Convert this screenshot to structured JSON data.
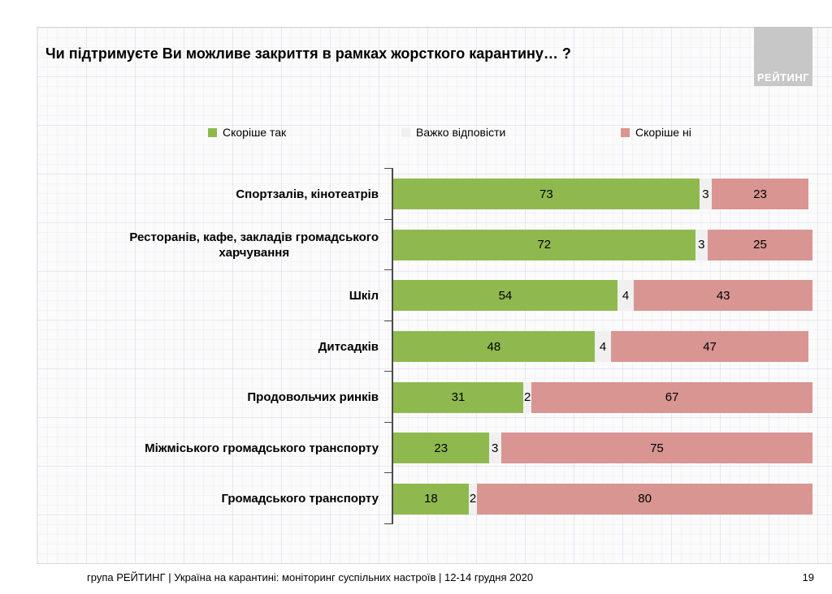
{
  "header": {
    "title": "Чи підтримуєте Ви можливе закриття в рамках жорсткого карантину… ?",
    "logo_text": "РЕЙТИНГ"
  },
  "legend": [
    {
      "label": "Скоріше так",
      "color": "#8fb94f"
    },
    {
      "label": "Важко відповісти",
      "color": "#f0f0f0"
    },
    {
      "label": "Скоріше ні",
      "color": "#d89592"
    }
  ],
  "chart_data": {
    "type": "bar",
    "orientation": "horizontal",
    "stacked": true,
    "unit": "percent",
    "xlim": [
      0,
      100
    ],
    "grid": false,
    "legend_position": "top",
    "title": "Чи підтримуєте Ви можливе закриття в рамках жорсткого карантину… ?",
    "categories": [
      "Спортзалів, кінотеатрів",
      "Ресторанів, кафе, закладів громадського\nхарчування",
      "Шкіл",
      "Дитсадків",
      "Продовольчих ринків",
      "Міжміського громадського транспорту",
      "Громадського транспорту"
    ],
    "series": [
      {
        "key": "yes",
        "name": "Скоріше так",
        "color": "#8fb94f",
        "values": [
          73,
          72,
          54,
          48,
          31,
          23,
          18
        ]
      },
      {
        "key": "dk",
        "name": "Важко відповісти",
        "color": "#f0f0f0",
        "values": [
          3,
          3,
          4,
          4,
          2,
          3,
          2
        ]
      },
      {
        "key": "no",
        "name": "Скоріше ні",
        "color": "#d89592",
        "values": [
          23,
          25,
          43,
          47,
          67,
          75,
          80
        ]
      }
    ]
  },
  "footer": {
    "source": "група РЕЙТИНГ | Україна на карантині: моніторинг суспільних настроїв | 12-14 грудня 2020",
    "page": "19"
  }
}
